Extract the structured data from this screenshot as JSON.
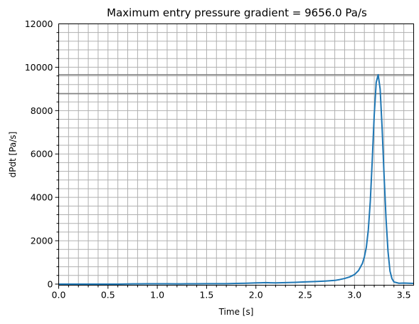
{
  "chart_data": {
    "type": "line",
    "title": "Maximum entry pressure gradient = 9656.0 Pa/s",
    "xlabel": "Time [s]",
    "ylabel": "dPdt [Pa/s]",
    "xlim": [
      0,
      3.6
    ],
    "ylim": [
      -50,
      12000
    ],
    "xticks": [
      0.0,
      0.5,
      1.0,
      1.5,
      2.0,
      2.5,
      3.0,
      3.5
    ],
    "xtick_labels": [
      "0.0",
      "0.5",
      "1.0",
      "1.5",
      "2.0",
      "2.5",
      "3.0",
      "3.5"
    ],
    "yticks": [
      0,
      2000,
      4000,
      6000,
      8000,
      10000,
      12000
    ],
    "ytick_labels": [
      "0",
      "2000",
      "4000",
      "6000",
      "8000",
      "10000",
      "12000"
    ],
    "grid": true,
    "minor_grid": true,
    "hlines": [
      {
        "y": 9656,
        "color": "#808080"
      },
      {
        "y": 8780,
        "color": "#808080"
      }
    ],
    "series": [
      {
        "color": "#1f77b4",
        "x": [
          0.0,
          0.2,
          0.4,
          0.6,
          0.75,
          0.8,
          0.9,
          1.0,
          1.1,
          1.2,
          1.3,
          1.4,
          1.5,
          1.6,
          1.7,
          1.8,
          1.9,
          2.0,
          2.05,
          2.1,
          2.15,
          2.2,
          2.3,
          2.4,
          2.5,
          2.6,
          2.7,
          2.8,
          2.85,
          2.9,
          2.95,
          3.0,
          3.04,
          3.08,
          3.1,
          3.12,
          3.14,
          3.16,
          3.18,
          3.2,
          3.22,
          3.24,
          3.26,
          3.28,
          3.3,
          3.32,
          3.34,
          3.36,
          3.38,
          3.4,
          3.45,
          3.5,
          3.55,
          3.6
        ],
        "y": [
          0,
          0,
          0,
          0,
          10,
          10,
          15,
          15,
          15,
          10,
          15,
          15,
          20,
          20,
          20,
          30,
          40,
          55,
          60,
          70,
          60,
          55,
          70,
          80,
          100,
          120,
          140,
          170,
          210,
          260,
          330,
          440,
          620,
          950,
          1250,
          1700,
          2500,
          3800,
          5700,
          7800,
          9300,
          9656,
          9000,
          7200,
          5000,
          3000,
          1500,
          600,
          250,
          100,
          40,
          50,
          40,
          30
        ]
      }
    ]
  }
}
